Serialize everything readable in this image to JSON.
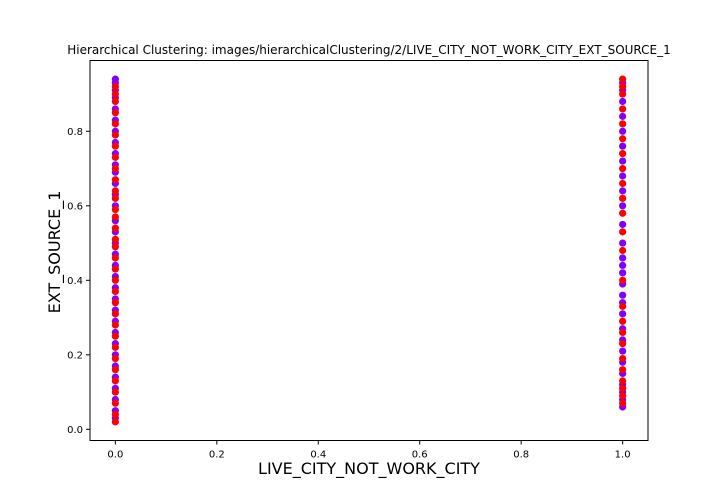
{
  "chart_data": {
    "type": "scatter",
    "title": "Hierarchical Clustering: images/hierarchicalClustering/2/LIVE_CITY_NOT_WORK_CITY_EXT_SOURCE_1",
    "xlabel": "LIVE_CITY_NOT_WORK_CITY",
    "ylabel": "EXT_SOURCE_1",
    "xlim": [
      -0.05,
      1.05
    ],
    "ylim": [
      -0.03,
      0.99
    ],
    "xticks": [
      0.0,
      0.2,
      0.4,
      0.6,
      0.8,
      1.0
    ],
    "xtick_labels": [
      "0.0",
      "0.2",
      "0.4",
      "0.6",
      "0.8",
      "1.0"
    ],
    "yticks": [
      0.0,
      0.2,
      0.4,
      0.6,
      0.8
    ],
    "ytick_labels": [
      "0.0",
      "0.2",
      "0.4",
      "0.6",
      "0.8"
    ],
    "grid": false,
    "legend": "none",
    "cluster_colors": [
      "#ff0000",
      "#8000ff"
    ],
    "series": [
      {
        "color": "#8000ff",
        "points": [
          [
            0,
            0.94
          ],
          [
            0,
            0.93
          ],
          [
            0,
            0.91
          ],
          [
            0,
            0.89
          ],
          [
            0,
            0.86
          ],
          [
            0,
            0.83
          ],
          [
            0,
            0.8
          ],
          [
            0,
            0.77
          ],
          [
            0,
            0.74
          ],
          [
            0,
            0.71
          ],
          [
            0,
            0.69
          ],
          [
            0,
            0.66
          ],
          [
            0,
            0.63
          ],
          [
            0,
            0.6
          ],
          [
            0,
            0.56
          ],
          [
            0,
            0.53
          ],
          [
            0,
            0.5
          ],
          [
            0,
            0.47
          ],
          [
            0,
            0.44
          ],
          [
            0,
            0.41
          ],
          [
            0,
            0.38
          ],
          [
            0,
            0.35
          ],
          [
            0,
            0.32
          ],
          [
            0,
            0.29
          ],
          [
            0,
            0.26
          ],
          [
            0,
            0.23
          ],
          [
            0,
            0.2
          ],
          [
            0,
            0.17
          ],
          [
            0,
            0.14
          ],
          [
            0,
            0.11
          ],
          [
            0,
            0.08
          ],
          [
            0,
            0.05
          ],
          [
            0,
            0.03
          ],
          [
            1,
            0.93
          ],
          [
            1,
            0.91
          ],
          [
            1,
            0.88
          ],
          [
            1,
            0.84
          ],
          [
            1,
            0.8
          ],
          [
            1,
            0.76
          ],
          [
            1,
            0.72
          ],
          [
            1,
            0.68
          ],
          [
            1,
            0.64
          ],
          [
            1,
            0.6
          ],
          [
            1,
            0.55
          ],
          [
            1,
            0.5
          ],
          [
            1,
            0.46
          ],
          [
            1,
            0.44
          ],
          [
            1,
            0.42
          ],
          [
            1,
            0.39
          ],
          [
            1,
            0.36
          ],
          [
            1,
            0.34
          ],
          [
            1,
            0.31
          ],
          [
            1,
            0.27
          ],
          [
            1,
            0.24
          ],
          [
            1,
            0.21
          ],
          [
            1,
            0.18
          ],
          [
            1,
            0.15
          ],
          [
            1,
            0.12
          ],
          [
            1,
            0.1
          ],
          [
            1,
            0.08
          ],
          [
            1,
            0.06
          ]
        ]
      },
      {
        "color": "#ff0000",
        "points": [
          [
            0,
            0.92
          ],
          [
            0,
            0.9
          ],
          [
            0,
            0.88
          ],
          [
            0,
            0.85
          ],
          [
            0,
            0.82
          ],
          [
            0,
            0.79
          ],
          [
            0,
            0.76
          ],
          [
            0,
            0.73
          ],
          [
            0,
            0.7
          ],
          [
            0,
            0.67
          ],
          [
            0,
            0.64
          ],
          [
            0,
            0.62
          ],
          [
            0,
            0.59
          ],
          [
            0,
            0.57
          ],
          [
            0,
            0.54
          ],
          [
            0,
            0.51
          ],
          [
            0,
            0.49
          ],
          [
            0,
            0.46
          ],
          [
            0,
            0.43
          ],
          [
            0,
            0.4
          ],
          [
            0,
            0.37
          ],
          [
            0,
            0.34
          ],
          [
            0,
            0.31
          ],
          [
            0,
            0.28
          ],
          [
            0,
            0.25
          ],
          [
            0,
            0.22
          ],
          [
            0,
            0.19
          ],
          [
            0,
            0.16
          ],
          [
            0,
            0.13
          ],
          [
            0,
            0.1
          ],
          [
            0,
            0.07
          ],
          [
            0,
            0.04
          ],
          [
            0,
            0.02
          ],
          [
            1,
            0.94
          ],
          [
            1,
            0.92
          ],
          [
            1,
            0.9
          ],
          [
            1,
            0.86
          ],
          [
            1,
            0.82
          ],
          [
            1,
            0.78
          ],
          [
            1,
            0.74
          ],
          [
            1,
            0.7
          ],
          [
            1,
            0.66
          ],
          [
            1,
            0.62
          ],
          [
            1,
            0.58
          ],
          [
            1,
            0.53
          ],
          [
            1,
            0.48
          ],
          [
            1,
            0.4
          ],
          [
            1,
            0.33
          ],
          [
            1,
            0.29
          ],
          [
            1,
            0.26
          ],
          [
            1,
            0.23
          ],
          [
            1,
            0.19
          ],
          [
            1,
            0.16
          ],
          [
            1,
            0.13
          ],
          [
            1,
            0.11
          ],
          [
            1,
            0.09
          ],
          [
            1,
            0.07
          ]
        ]
      }
    ]
  }
}
